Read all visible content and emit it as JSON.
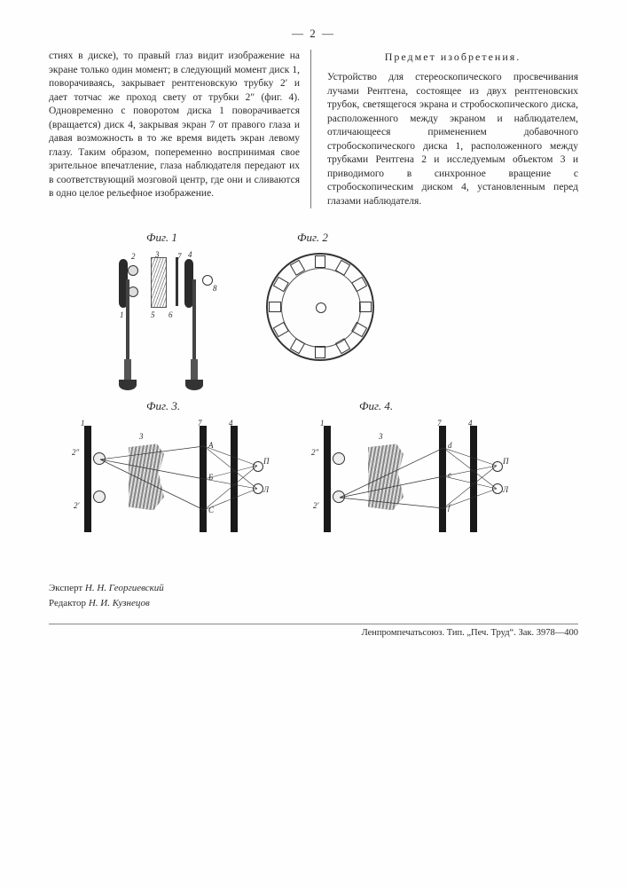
{
  "page_number_label": "— 2 —",
  "left_column": "стиях в диске), то правый глаз видит изображение на экране только один момент; в следующий момент диск 1, поворачиваясь, закрывает рентгеновскую трубку 2′ и дает тотчас же проход свету от трубки 2″ (фиг. 4). Одновременно с поворотом диска 1 поворачивается (вращается) диск 4, закрывая экран 7 от правого глаза и давая возможность в то же время видеть экран левому глазу. Таким образом, попеременно воспринимая свое зрительное впечатление, глаза наблюдателя передают их в соответствующий мозговой центр, где они и сливаются в одно целое рельефное изображение.",
  "claim_heading": "Предмет изобретения.",
  "right_column": "Устройство для стереоскопического просвечивания лучами Рентгена, состоящее из двух рентгеновских трубок, светящегося экрана и стробоскопического диска, расположенного между экраном и наблюдателем, отличающееся применением добавочного стробоскопического диска 1, расположенного между трубками Рентгена 2 и исследуемым объектом 3 и приводимого в синхронное вращение с стробоскопическим диском 4, установленным перед глазами наблюдателя.",
  "figures": {
    "fig1_label": "Фиг. 1",
    "fig2_label": "Фиг. 2",
    "fig3_label": "Фиг. 3.",
    "fig4_label": "Фиг. 4.",
    "fig1_numbers": {
      "n1": "1",
      "n2": "2",
      "n3": "3",
      "n4": "4",
      "n5": "5",
      "n6": "6",
      "n7": "7",
      "n8": "8"
    },
    "fig2": {
      "slot_count": 12
    },
    "fig3_labels": {
      "one": "1",
      "two_p": "2″",
      "two": "2′",
      "three": "3",
      "seven": "7",
      "four": "4",
      "A": "A",
      "B": "Б",
      "C": "С",
      "P": "П",
      "L": "Л"
    },
    "fig4_labels": {
      "one": "1",
      "two_p": "2″",
      "two": "2′",
      "three": "3",
      "seven": "7",
      "four": "4",
      "d": "d",
      "e": "е",
      "f": "f",
      "P": "П",
      "L": "Л"
    }
  },
  "credits": {
    "expert_label": "Эксперт",
    "expert_name": "Н. Н. Георгиевский",
    "editor_label": "Редактор",
    "editor_name": "Н. И. Кузнецов"
  },
  "footer": {
    "left": "Ленпромпечатьсоюз. Тип. „Печ. Труд“. Зак. 3978—400",
    "right": ""
  },
  "style": {
    "text_color": "#2a2a2a",
    "rule_color": "#777",
    "bar_color": "#1a1a1a",
    "hatch_color": "#888"
  }
}
